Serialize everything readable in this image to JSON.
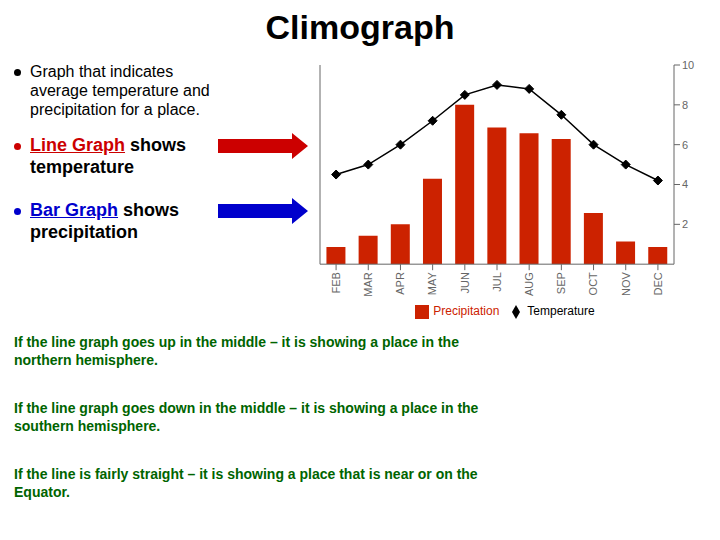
{
  "chart_data": {
    "type": "bar",
    "title": "Climograph",
    "annotations": [
      {
        "text": "Graph that indicates\naverage temperature and\nprecipitation for a place.",
        "color": "#000000"
      },
      {
        "text": "Line Graph",
        "color": "#cc0000"
      },
      {
        "text": " shows\ntemperature",
        "color": "#000000"
      },
      {
        "text": "Bar Graph",
        "color": "#0000cc"
      },
      {
        "text": " shows\nprecipitation",
        "color": "#000000"
      },
      {
        "text": "If the line graph goes up in the middle – it is showing a place in the\nnorthern hemisphere.",
        "color": "#006400"
      },
      {
        "text": "If the line graph goes down in the middle – it is showing a place in the\nsouthern hemisphere.",
        "color": "#006400"
      },
      {
        "text": "If the line is fairly straight – it is showing a place that is near or on the\nEquator.",
        "color": "#006400"
      }
    ],
    "categories": [
      "FEB",
      "MAR",
      "APR",
      "MAY",
      "JUN",
      "JUL",
      "AUG",
      "SEP",
      "OCT",
      "NOV",
      "DEC"
    ],
    "series": [
      {
        "name": "Precipitation",
        "type": "bar",
        "color": "#cc2200",
        "values": [
          0.3,
          0.5,
          0.7,
          1.5,
          2.8,
          2.4,
          2.3,
          2.2,
          0.9,
          0.4,
          0.3
        ]
      },
      {
        "name": "Temperature",
        "type": "line",
        "color": "#000000",
        "marker": "diamond",
        "axis": "y2",
        "values": [
          4.5,
          5.0,
          6.0,
          7.2,
          8.5,
          9.0,
          8.8,
          7.5,
          6.0,
          5.0,
          4.2
        ]
      }
    ],
    "ylim": [
      0,
      3.5
    ],
    "yticks": [],
    "y2lim": [
      0,
      10
    ],
    "y2ticks": [
      2,
      4,
      6,
      8,
      10
    ],
    "legend": "bottom",
    "grid": false
  }
}
